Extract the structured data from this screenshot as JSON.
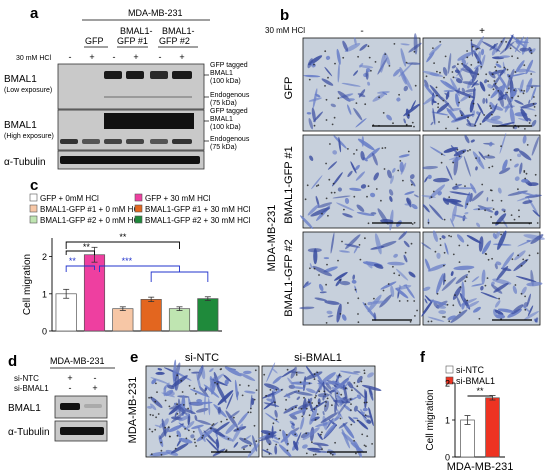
{
  "panels": {
    "a": {
      "label": "a",
      "cell_line": "MDA-MB-231",
      "lane_groups": [
        "GFP",
        "BMAL1-",
        "GFP #1",
        "BMAL1-",
        "GFP #2"
      ],
      "treatment_label": "30 mM HCl",
      "signs": [
        "-",
        "+",
        "-",
        "+",
        "-",
        "+"
      ],
      "blot1_label": "BMAL1",
      "blot1_sub": "(Low exposure)",
      "blot2_label": "BMAL1",
      "blot2_sub": "(High exposure)",
      "blot3_label": "α-Tubulin",
      "ann_gfp_tagged": "GFP tagged",
      "ann_bmal1": "BMAL1",
      "ann_100": "(100 kDa)",
      "ann_endog": "Endogenous",
      "ann_75": "(75 kDa)"
    },
    "b": {
      "label": "b",
      "cell_line": "MDA-MB-231",
      "treatment_label": "30 mM HCl",
      "col_signs": [
        "-",
        "+"
      ],
      "row_labels": [
        "GFP",
        "BMAL1-GFP #1",
        "BMAL1-GFP #2"
      ]
    },
    "c": {
      "label": "c",
      "legend": [
        {
          "text": "GFP + 0mM HCl",
          "color": "#ffffff"
        },
        {
          "text": "GFP + 30 mM HCl",
          "color": "#ee3fa0"
        },
        {
          "text": "BMAL1-GFP #1 + 0 mM HCl",
          "color": "#f7c7a6"
        },
        {
          "text": "BMAL1-GFP #1 + 30 mM HCl",
          "color": "#e3661f"
        },
        {
          "text": "BMAL1-GFP #2 + 0 mM HCl",
          "color": "#bfe5b1"
        },
        {
          "text": "BMAL1-GFP #2 + 30 mM HCl",
          "color": "#1f8a3b"
        }
      ],
      "sig": [
        "**",
        "**",
        "**",
        "***"
      ]
    },
    "d": {
      "label": "d",
      "cell_line": "MDA-MB-231",
      "row1": "si-NTC",
      "row2": "si-BMAL1",
      "signs1": [
        "+",
        "-"
      ],
      "signs2": [
        "-",
        "+"
      ],
      "blot1_label": "BMAL1",
      "blot2_label": "α-Tubulin"
    },
    "e": {
      "label": "e",
      "cell_line": "MDA-MB-231",
      "col_labels": [
        "si-NTC",
        "si-BMAL1"
      ]
    },
    "f": {
      "label": "f",
      "legend": [
        "si-NTC",
        "si-BMAL1"
      ],
      "legend_colors": [
        "#ffffff",
        "#ee3322"
      ],
      "sig": "**",
      "xlabel": "MDA-MB-231"
    }
  },
  "chart_data": [
    {
      "type": "bar",
      "title": "",
      "xlabel": "",
      "ylabel": "Cell migration",
      "ylim": [
        0,
        2.5
      ],
      "yticks": [
        "0",
        "1",
        "2"
      ],
      "categories": [
        "GFP + 0mM HCl",
        "GFP + 30 mM HCl",
        "BMAL1-GFP #1 + 0 mM HCl",
        "BMAL1-GFP #1 + 30 mM HCl",
        "BMAL1-GFP #2 + 0 mM HCl",
        "BMAL1-GFP #2 + 30 mM HCl"
      ],
      "values": [
        1.0,
        2.05,
        0.6,
        0.85,
        0.6,
        0.87
      ],
      "errors": [
        0.12,
        0.2,
        0.05,
        0.06,
        0.05,
        0.05
      ],
      "colors": [
        "#ffffff",
        "#ee3fa0",
        "#f7c7a6",
        "#e3661f",
        "#bfe5b1",
        "#1f8a3b"
      ],
      "grid": false,
      "legend": "top"
    },
    {
      "type": "bar",
      "title": "",
      "xlabel": "MDA-MB-231",
      "ylabel": "Cell migration",
      "ylim": [
        0,
        2
      ],
      "yticks": [
        "0",
        "1",
        "2"
      ],
      "categories": [
        "si-NTC",
        "si-BMAL1"
      ],
      "values": [
        1.0,
        1.6
      ],
      "errors": [
        0.12,
        0.06
      ],
      "colors": [
        "#ffffff",
        "#ee3322"
      ],
      "grid": false,
      "legend": "top-left"
    }
  ]
}
